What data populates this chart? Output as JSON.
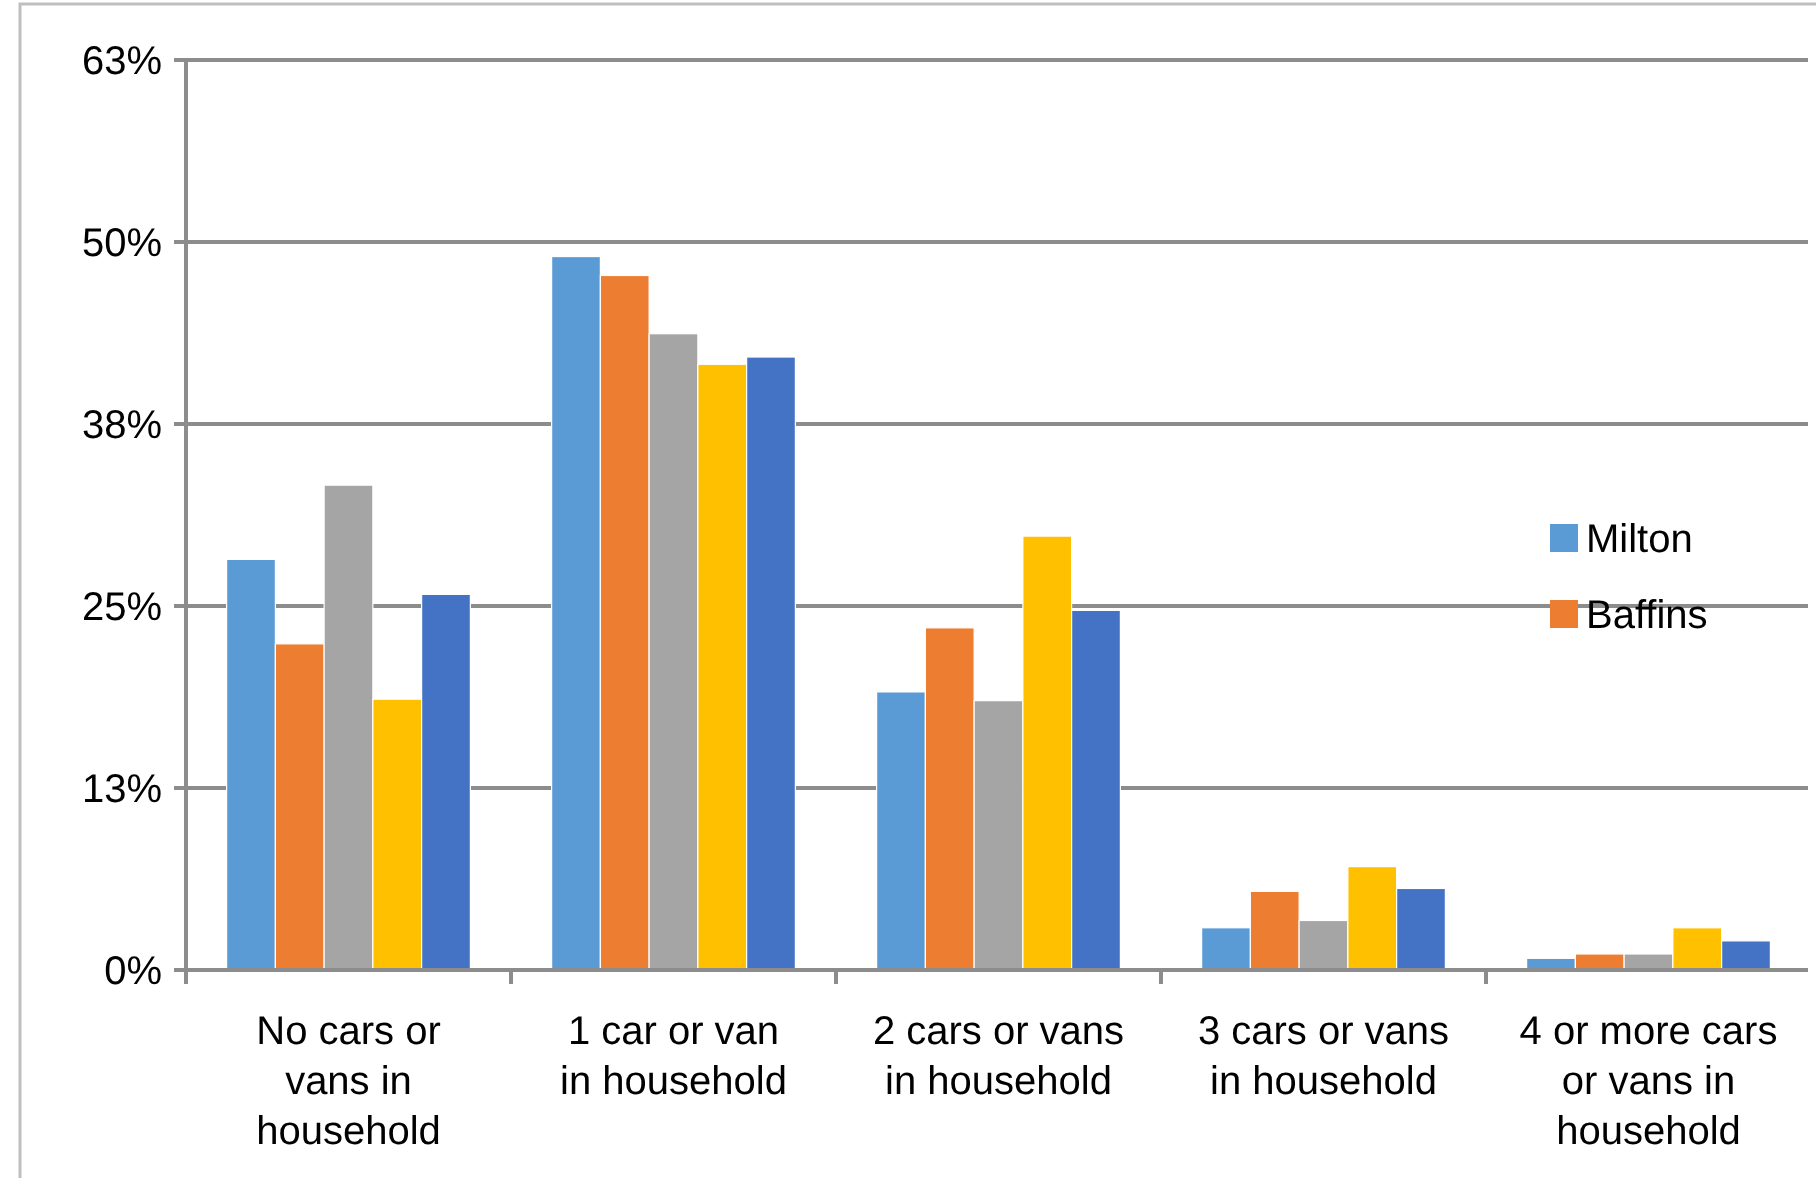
{
  "chart_data": {
    "type": "bar",
    "categories": [
      "No cars or vans in household",
      "1 car or van in household",
      "2 cars or vans in household",
      "3 cars or vans in household",
      "4 or more cars or vans in household"
    ],
    "series": [
      {
        "name": "Milton",
        "color": "#5b9bd5",
        "values": [
          28.2,
          49.0,
          19.1,
          2.9,
          0.8
        ]
      },
      {
        "name": "Baffins",
        "color": "#ed7d31",
        "values": [
          22.4,
          47.7,
          23.5,
          5.4,
          1.1
        ]
      },
      {
        "color": "#a5a5a5",
        "values": [
          33.3,
          43.7,
          18.5,
          3.4,
          1.1
        ]
      },
      {
        "color": "#ffc000",
        "values": [
          18.6,
          41.6,
          29.8,
          7.1,
          2.9
        ]
      },
      {
        "color": "#4472c4",
        "values": [
          25.8,
          42.1,
          24.7,
          5.6,
          2.0
        ]
      }
    ],
    "ylim": [
      0,
      62.5
    ],
    "yticks": [
      {
        "value": 0,
        "label": "0%"
      },
      {
        "value": 12.5,
        "label": "13%"
      },
      {
        "value": 25,
        "label": "25%"
      },
      {
        "value": 37.5,
        "label": "38%"
      },
      {
        "value": 50,
        "label": "50%"
      },
      {
        "value": 62.5,
        "label": "63%"
      }
    ],
    "grid": "y",
    "legend": "right"
  }
}
